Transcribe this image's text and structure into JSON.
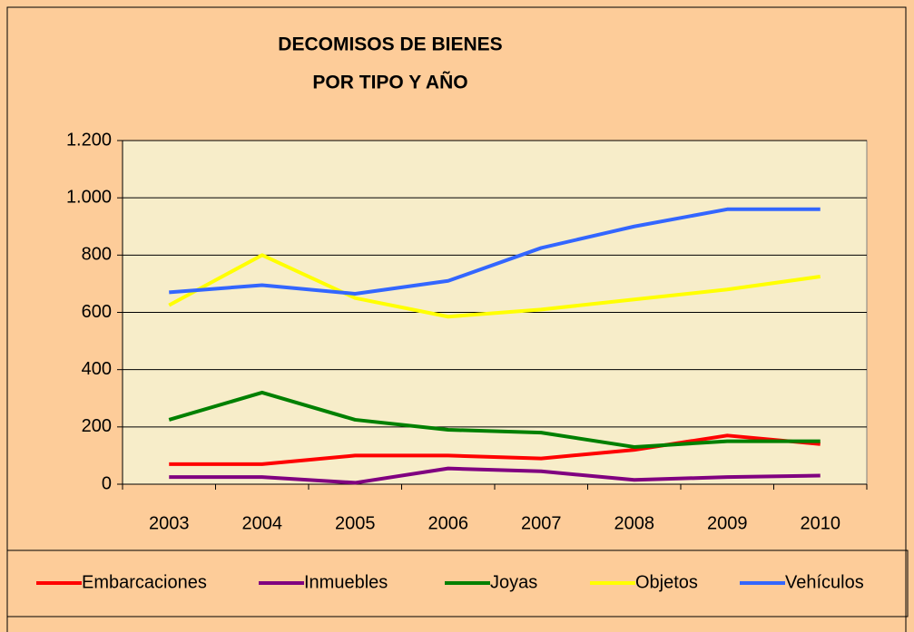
{
  "chart_data": {
    "type": "line",
    "title": [
      "DECOMISOS DE BIENES",
      "POR TIPO Y AÑO"
    ],
    "categories": [
      "2003",
      "2004",
      "2005",
      "2006",
      "2007",
      "2008",
      "2009",
      "2010"
    ],
    "series": [
      {
        "name": "Embarcaciones",
        "color": "#ff0000",
        "values": [
          70,
          70,
          100,
          100,
          90,
          120,
          170,
          140
        ]
      },
      {
        "name": "Inmuebles",
        "color": "#800080",
        "values": [
          25,
          25,
          5,
          55,
          45,
          15,
          25,
          30
        ]
      },
      {
        "name": "Joyas",
        "color": "#008000",
        "values": [
          225,
          320,
          225,
          190,
          180,
          130,
          150,
          150
        ]
      },
      {
        "name": "Objetos",
        "color": "#ffff00",
        "values": [
          625,
          800,
          650,
          585,
          610,
          645,
          680,
          725
        ]
      },
      {
        "name": "Vehículos",
        "color": "#3366ff",
        "values": [
          670,
          695,
          665,
          710,
          825,
          900,
          960,
          960
        ]
      }
    ],
    "ylim": [
      0,
      1200
    ],
    "yticks": [
      0,
      200,
      400,
      600,
      800,
      {
        "value": 1000,
        "label": "1.000"
      },
      {
        "value": 1200,
        "label": "1.200"
      }
    ],
    "grid": true,
    "legend": "bottom"
  }
}
